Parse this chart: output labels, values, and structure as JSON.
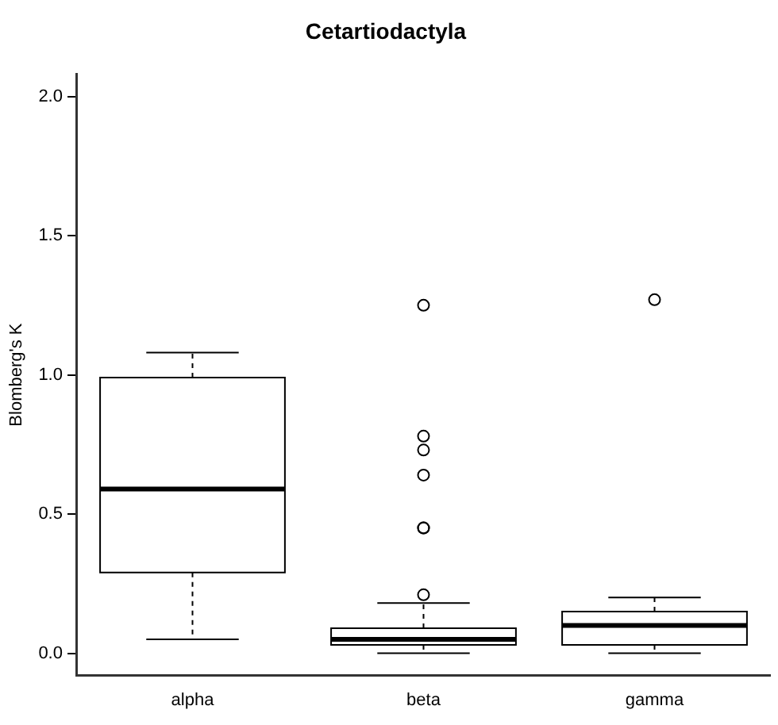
{
  "chart_data": {
    "type": "box",
    "title": "Cetartiodactyla",
    "ylabel": "Blomberg's K",
    "categories": [
      "alpha",
      "beta",
      "gamma"
    ],
    "boxes": [
      {
        "low": 0.05,
        "q1": 0.29,
        "median": 0.59,
        "q3": 0.99,
        "high": 1.08
      },
      {
        "low": 0.0,
        "q1": 0.03,
        "median": 0.05,
        "q3": 0.09,
        "high": 0.18,
        "outliers": [
          1.25,
          0.78,
          0.73,
          0.64,
          0.45,
          0.45,
          0.21
        ]
      },
      {
        "low": 0.0,
        "q1": 0.03,
        "median": 0.1,
        "q3": 0.15,
        "high": 0.2,
        "outliers": [
          1.27
        ]
      }
    ],
    "color": "#000000",
    "marker": "circle",
    "grid": false,
    "legend": false,
    "ylim": [
      -0.08,
      2.08
    ],
    "yticks": [
      {
        "value": 0,
        "label": "0.0"
      },
      {
        "value": 0.5,
        "label": "0.5"
      },
      {
        "value": 1,
        "label": "1.0"
      },
      {
        "value": 1.5,
        "label": "1.5"
      },
      {
        "value": 2,
        "label": "2.0"
      }
    ]
  }
}
